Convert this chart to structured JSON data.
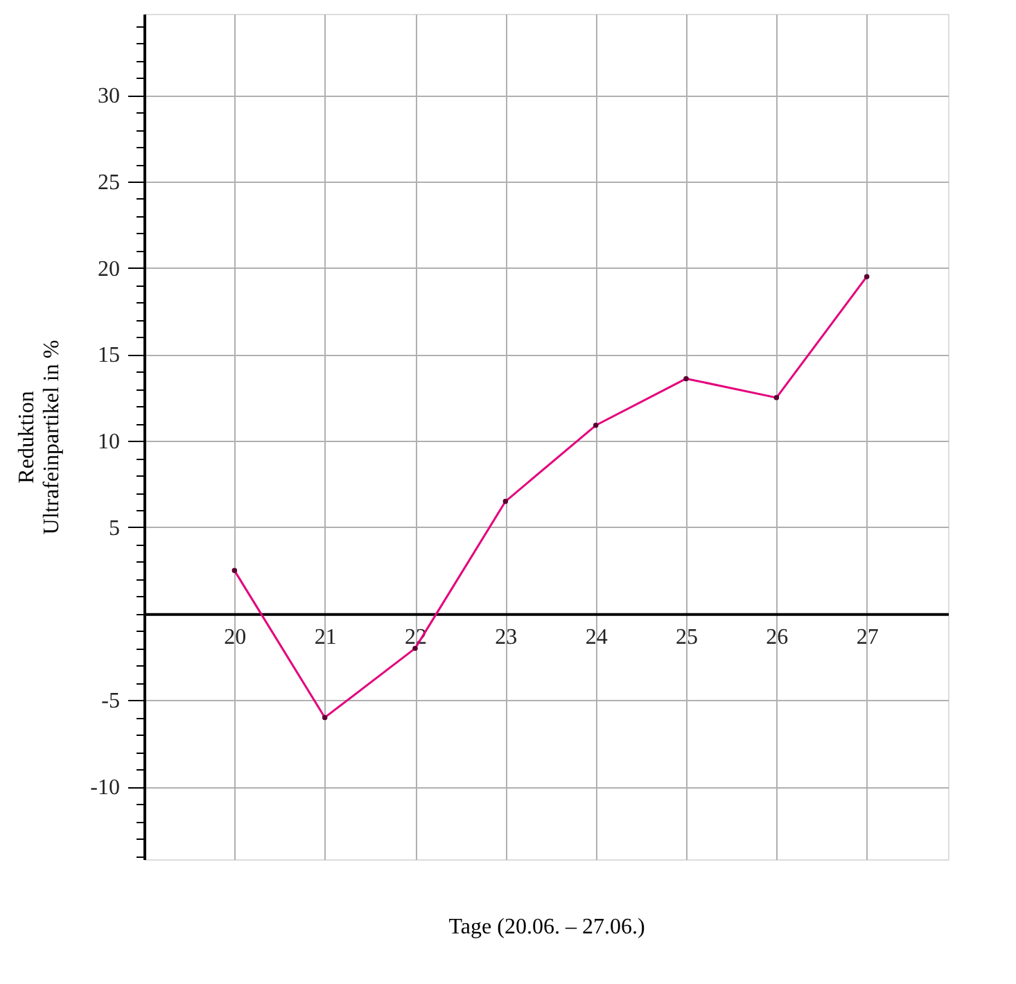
{
  "chart_data": {
    "type": "line",
    "xlabel": "Tage (20.06. – 27.06.)",
    "ylabel": "Reduktion\nUltrafeinpartikel in %",
    "x": [
      20,
      21,
      22,
      23,
      24,
      25,
      26,
      27
    ],
    "series": [
      {
        "color": "#e4007c",
        "values": [
          2.5,
          -6,
          -2,
          6.5,
          10.9,
          13.6,
          12.5,
          19.5
        ]
      }
    ],
    "xlim": [
      19,
      27.9
    ],
    "xticks": [
      20,
      21,
      22,
      23,
      24,
      25,
      26,
      27
    ],
    "ylim": [
      -14.2,
      34.7
    ],
    "yticks": [
      {
        "value": -14,
        "label": null
      },
      {
        "value": -13,
        "label": null
      },
      {
        "value": -12,
        "label": null
      },
      {
        "value": -11,
        "label": null
      },
      -10,
      {
        "value": -9,
        "label": null
      },
      {
        "value": -8,
        "label": null
      },
      {
        "value": -7,
        "label": null
      },
      {
        "value": -6,
        "label": null
      },
      -5,
      {
        "value": -4,
        "label": null
      },
      {
        "value": -3,
        "label": null
      },
      {
        "value": -2,
        "label": null
      },
      {
        "value": -1,
        "label": null
      },
      {
        "value": 0,
        "label": null
      },
      {
        "value": 1,
        "label": null
      },
      {
        "value": 2,
        "label": null
      },
      {
        "value": 3,
        "label": null
      },
      {
        "value": 4,
        "label": null
      },
      5,
      {
        "value": 6,
        "label": null
      },
      {
        "value": 7,
        "label": null
      },
      {
        "value": 8,
        "label": null
      },
      {
        "value": 9,
        "label": null
      },
      10,
      {
        "value": 11,
        "label": null
      },
      {
        "value": 12,
        "label": null
      },
      {
        "value": 13,
        "label": null
      },
      {
        "value": 14,
        "label": null
      },
      15,
      {
        "value": 16,
        "label": null
      },
      {
        "value": 17,
        "label": null
      },
      {
        "value": 18,
        "label": null
      },
      {
        "value": 19,
        "label": null
      },
      20,
      {
        "value": 21,
        "label": null
      },
      {
        "value": 22,
        "label": null
      },
      {
        "value": 23,
        "label": null
      },
      {
        "value": 24,
        "label": null
      },
      25,
      {
        "value": 26,
        "label": null
      },
      {
        "value": 27,
        "label": null
      },
      {
        "value": 28,
        "label": null
      },
      {
        "value": 29,
        "label": null
      },
      30,
      {
        "value": 31,
        "label": null
      },
      {
        "value": 32,
        "label": null
      },
      {
        "value": 33,
        "label": null
      },
      {
        "value": 34,
        "label": null
      }
    ],
    "grid": true,
    "marker": "circle",
    "line_style": "solid"
  }
}
